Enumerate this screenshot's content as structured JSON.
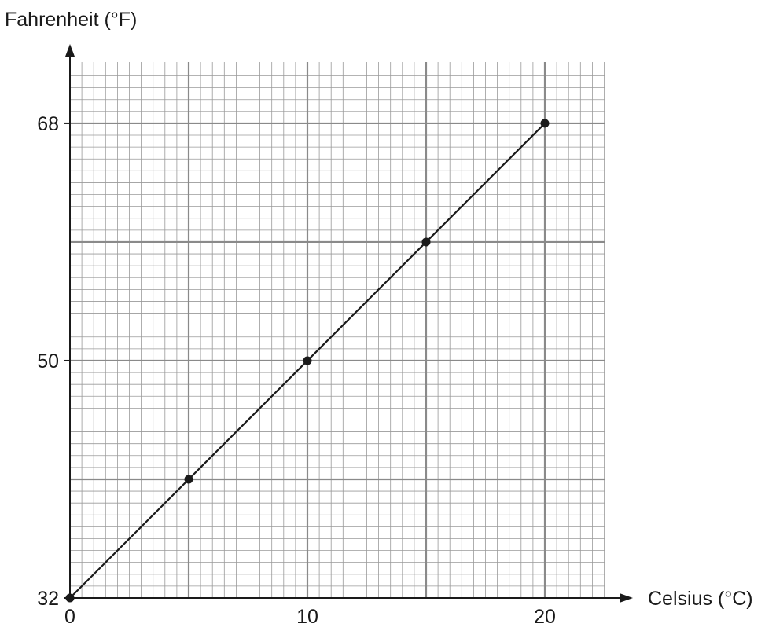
{
  "chart_data": {
    "type": "line",
    "xlabel": "Celsius (°C)",
    "ylabel": "Fahrenheit (°F)",
    "xlim": [
      0,
      22.5
    ],
    "ylim": [
      32,
      72
    ],
    "x_ticks": [
      0,
      10,
      20
    ],
    "y_ticks": [
      32,
      50,
      68
    ],
    "x_tick_labels": [
      "0",
      "10",
      "20"
    ],
    "y_tick_labels": [
      "32",
      "50",
      "68"
    ],
    "major_grid_x": 5,
    "major_grid_y": 9,
    "minor_grid_x": 0.5,
    "minor_grid_y": 0.9,
    "grid": true,
    "series": [
      {
        "x": [
          0,
          5,
          10,
          15,
          20
        ],
        "y": [
          32,
          41,
          50,
          59,
          68
        ]
      }
    ],
    "colors": {
      "line": "#1a1a1a",
      "minor_grid": "#9a9a9a",
      "major_grid": "#8a8a8a",
      "axis": "#1a1a1a"
    }
  }
}
